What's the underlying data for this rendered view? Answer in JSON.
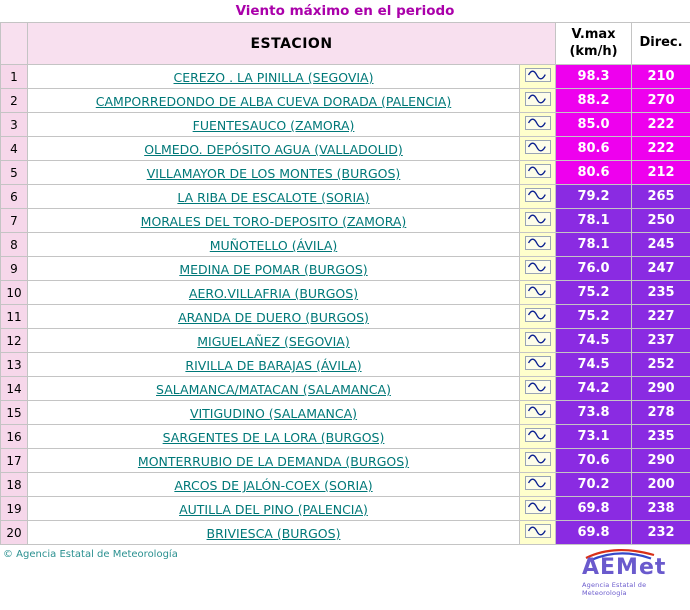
{
  "title": "Viento máximo en el periodo",
  "table": {
    "headers": {
      "station": "ESTACION",
      "vmax_line1": "V.max",
      "vmax_line2": "(km/h)",
      "direc": "Direc."
    },
    "rows": [
      {
        "num": "1",
        "station": "CEREZO . LA PINILLA (SEGOVIA)",
        "vmax": "98.3",
        "direc": "210"
      },
      {
        "num": "2",
        "station": "CAMPORREDONDO DE ALBA CUEVA DORADA (PALENCIA)",
        "vmax": "88.2",
        "direc": "270"
      },
      {
        "num": "3",
        "station": "FUENTESAUCO (ZAMORA)",
        "vmax": "85.0",
        "direc": "222"
      },
      {
        "num": "4",
        "station": "OLMEDO. DEPÓSITO AGUA (VALLADOLID)",
        "vmax": "80.6",
        "direc": "222"
      },
      {
        "num": "5",
        "station": "VILLAMAYOR DE LOS MONTES (BURGOS)",
        "vmax": "80.6",
        "direc": "212"
      },
      {
        "num": "6",
        "station": "LA RIBA DE ESCALOTE (SORIA)",
        "vmax": "79.2",
        "direc": "265"
      },
      {
        "num": "7",
        "station": "MORALES DEL TORO-DEPOSITO (ZAMORA)",
        "vmax": "78.1",
        "direc": "250"
      },
      {
        "num": "8",
        "station": "MUÑOTELLO (ÁVILA)",
        "vmax": "78.1",
        "direc": "245"
      },
      {
        "num": "9",
        "station": "MEDINA DE POMAR (BURGOS)",
        "vmax": "76.0",
        "direc": "247"
      },
      {
        "num": "10",
        "station": "AERO.VILLAFRIA (BURGOS)",
        "vmax": "75.2",
        "direc": "235"
      },
      {
        "num": "11",
        "station": "ARANDA DE DUERO (BURGOS)",
        "vmax": "75.2",
        "direc": "227"
      },
      {
        "num": "12",
        "station": "MIGUELAÑEZ (SEGOVIA)",
        "vmax": "74.5",
        "direc": "237"
      },
      {
        "num": "13",
        "station": "RIVILLA DE BARAJAS (ÁVILA)",
        "vmax": "74.5",
        "direc": "252"
      },
      {
        "num": "14",
        "station": "SALAMANCA/MATACAN (SALAMANCA)",
        "vmax": "74.2",
        "direc": "290"
      },
      {
        "num": "15",
        "station": "VITIGUDINO (SALAMANCA)",
        "vmax": "73.8",
        "direc": "278"
      },
      {
        "num": "16",
        "station": "SARGENTES DE LA LORA (BURGOS)",
        "vmax": "73.1",
        "direc": "235"
      },
      {
        "num": "17",
        "station": "MONTERRUBIO DE LA DEMANDA (BURGOS)",
        "vmax": "70.6",
        "direc": "290"
      },
      {
        "num": "18",
        "station": "ARCOS DE JALÓN-COEX (SORIA)",
        "vmax": "70.2",
        "direc": "200"
      },
      {
        "num": "19",
        "station": "AUTILLA DEL PINO (PALENCIA)",
        "vmax": "69.8",
        "direc": "238"
      },
      {
        "num": "20",
        "station": "BRIVIESCA (BURGOS)",
        "vmax": "69.8",
        "direc": "232"
      }
    ]
  },
  "icons": {
    "row_graph": "wave-icon",
    "logo_swoosh": "logo-swoosh-icon"
  },
  "colors": {
    "title": "#aa00aa",
    "header_pink": "#f8e0ef",
    "num_col": "#f6d7ea",
    "icon_col": "#ffffcc",
    "value_magenta": "#ee00ee",
    "value_violet": "#8a2be2",
    "link": "#007878",
    "footer": "#2a9090"
  },
  "footer": {
    "copyright": "© Agencia Estatal de Meteorología",
    "logo_text": "AEMet",
    "logo_caption": "Agencia Estatal de Meteorología"
  }
}
